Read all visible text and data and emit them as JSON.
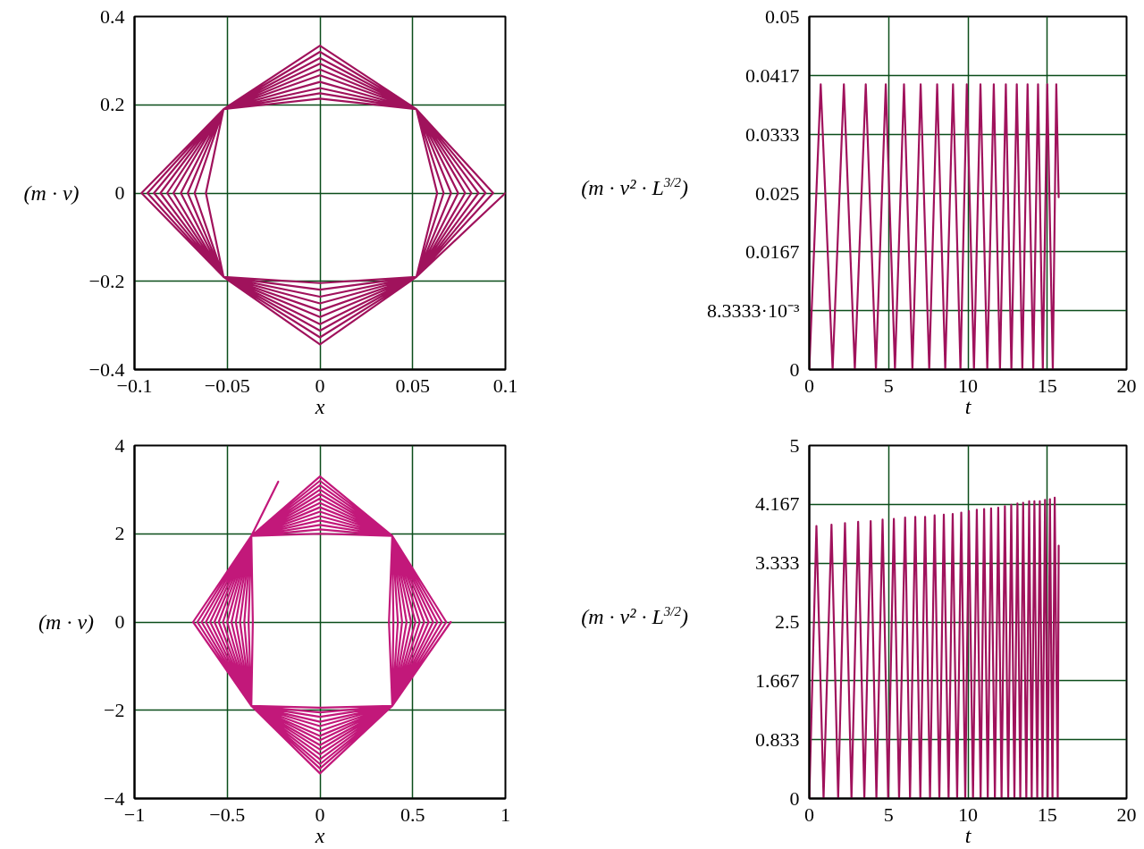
{
  "chart_data": [
    {
      "type": "line",
      "xlabel": "x",
      "ylabel": "(m · v)",
      "xlim": [
        -0.1,
        0.1
      ],
      "ylim": [
        -0.4,
        0.4
      ],
      "xticks": [
        -0.1,
        -0.05,
        0,
        0.05,
        0.1
      ],
      "yticks": [
        -0.4,
        -0.2,
        0,
        0.2,
        0.4
      ],
      "grid": true,
      "series": [
        {
          "color": "#a0125c",
          "x": [
            0.1,
            0.052,
            0,
            -0.052,
            -0.0962,
            -0.052,
            0,
            0.052,
            0.0934,
            0.052,
            0,
            -0.052,
            -0.093,
            -0.052,
            0,
            0.052,
            0.0893,
            0.052,
            0,
            -0.052,
            -0.0895,
            -0.052,
            0,
            0.052,
            0.0855,
            0.052,
            0,
            -0.052,
            -0.086,
            -0.052,
            0,
            0.052,
            0.0817,
            0.052,
            0,
            -0.052,
            -0.0824,
            -0.052,
            0,
            0.052,
            0.0783,
            0.052,
            0,
            -0.052,
            -0.079,
            -0.052,
            0,
            0.052,
            0.0745,
            0.052,
            0,
            -0.052,
            -0.075,
            -0.052,
            0,
            0.052,
            0.0707,
            0.052,
            0,
            -0.052,
            -0.0713,
            -0.052,
            0,
            0.052,
            0.0667,
            0.052,
            0,
            -0.052,
            -0.0676,
            -0.052,
            0,
            0.052,
            0.0632,
            0.052,
            0,
            -0.052,
            -0.0615,
            -0.052,
            0,
            0.052
          ],
          "values": [
            0,
            -0.19,
            -0.204,
            -0.19,
            0,
            0.19,
            0.214,
            0.19,
            0,
            -0.19,
            -0.219,
            -0.19,
            0,
            0.19,
            0.226,
            0.19,
            0,
            -0.19,
            -0.235,
            -0.19,
            0,
            0.19,
            0.238,
            0.19,
            0,
            -0.19,
            -0.25,
            -0.19,
            0,
            0.19,
            0.252,
            0.19,
            0,
            -0.19,
            -0.266,
            -0.19,
            0,
            0.19,
            0.267,
            0.19,
            0,
            -0.19,
            -0.281,
            -0.19,
            0,
            0.19,
            0.28,
            0.19,
            0,
            -0.19,
            -0.297,
            -0.19,
            0,
            0.19,
            0.293,
            0.19,
            0,
            -0.19,
            -0.312,
            -0.19,
            0,
            0.19,
            0.306,
            0.19,
            0,
            -0.19,
            -0.327,
            -0.19,
            0,
            0.19,
            0.32,
            0.19,
            0,
            -0.19,
            -0.343,
            -0.19,
            0,
            0.19,
            0.334,
            0.19
          ]
        }
      ]
    },
    {
      "type": "line",
      "xlabel": "t",
      "ylabel": "(m · v² · L$^{3/2}$)",
      "xlim": [
        0,
        20
      ],
      "ylim": [
        0,
        0.05
      ],
      "xticks": [
        0,
        5,
        10,
        15,
        20
      ],
      "yticks": [
        0,
        {
          "value": 0.0083333,
          "label": "8.3333·10⁻³"
        },
        {
          "value": 0.016667,
          "label": "0.0167"
        },
        0.025,
        {
          "value": 0.033333,
          "label": "0.0333"
        },
        {
          "value": 0.041667,
          "label": "0.0417"
        },
        0.05
      ],
      "grid": true,
      "series": [
        {
          "color": "#a0125c",
          "x": [
            0,
            0.72,
            1.47,
            2.18,
            2.87,
            3.56,
            4.2,
            4.82,
            5.4,
            5.97,
            6.5,
            7.02,
            7.56,
            8.06,
            8.57,
            9.06,
            9.53,
            9.93,
            10.38,
            10.79,
            11.22,
            11.63,
            12.02,
            12.39,
            12.74,
            13.08,
            13.43,
            13.76,
            14.12,
            14.42,
            14.72,
            15.0,
            15.35,
            15.57,
            15.72
          ],
          "values": [
            0,
            0.0404,
            0,
            0.0404,
            0,
            0.0404,
            0,
            0.0404,
            0,
            0.0404,
            0,
            0.0404,
            0,
            0.0404,
            0,
            0.0404,
            0,
            0.0404,
            0,
            0.0404,
            0,
            0.0404,
            0,
            0.0404,
            0,
            0.0404,
            0,
            0.0404,
            0,
            0.0404,
            0,
            0.0404,
            0,
            0.0404,
            0.0244
          ]
        }
      ]
    },
    {
      "type": "line",
      "xlabel": "x",
      "ylabel": "(m · v)",
      "xlim": [
        -1,
        1
      ],
      "ylim": [
        -4,
        4
      ],
      "xticks": [
        -1,
        -0.5,
        0,
        0.5,
        1
      ],
      "yticks": [
        -4,
        -2,
        0,
        2,
        4
      ],
      "grid": true,
      "series": [
        {
          "color": "#c2187a",
          "x": [
            0.705,
            0.39,
            0,
            -0.37,
            -0.684,
            -0.37,
            0,
            0.39,
            0.681,
            0.39,
            0,
            -0.37,
            -0.661,
            -0.37,
            0,
            0.39,
            0.657,
            0.39,
            0,
            -0.37,
            -0.638,
            -0.37,
            0,
            0.39,
            0.633,
            0.39,
            0,
            -0.37,
            -0.615,
            -0.37,
            0,
            0.39,
            0.61,
            0.39,
            0,
            -0.37,
            -0.592,
            -0.37,
            0,
            0.39,
            0.586,
            0.39,
            0,
            -0.37,
            -0.569,
            -0.37,
            0,
            0.39,
            0.562,
            0.39,
            0,
            -0.37,
            -0.546,
            -0.37,
            0,
            0.39,
            0.538,
            0.39,
            0,
            -0.37,
            -0.523,
            -0.37,
            0,
            0.39,
            0.515,
            0.39,
            0,
            -0.37,
            -0.5,
            -0.37,
            0,
            0.39,
            0.491,
            0.39,
            0,
            -0.37,
            -0.477,
            -0.37,
            0,
            0.39,
            0.467,
            0.39,
            0,
            -0.37,
            -0.454,
            -0.37,
            0,
            0.39,
            0.443,
            0.39,
            0,
            -0.37,
            -0.431,
            -0.37,
            0,
            0.39,
            0.42,
            0.39,
            0,
            -0.37,
            -0.408,
            -0.37,
            0,
            0.39,
            0.396,
            0.39,
            0,
            -0.37,
            -0.385,
            -0.37,
            0,
            0.39,
            0.372,
            0.39,
            0,
            -0.37,
            -0.362,
            -0.37,
            -0.225
          ],
          "values": [
            0,
            -1.9,
            -1.94,
            -1.9,
            0,
            1.95,
            2.0,
            1.95,
            0,
            -1.9,
            -2.05,
            -1.9,
            0,
            1.95,
            2.1,
            1.95,
            0,
            -1.9,
            -2.15,
            -1.9,
            0,
            1.95,
            2.2,
            1.95,
            0,
            -1.9,
            -2.26,
            -1.9,
            0,
            1.95,
            2.3,
            1.95,
            0,
            -1.9,
            -2.36,
            -1.9,
            0,
            1.95,
            2.4,
            1.95,
            0,
            -1.9,
            -2.47,
            -1.9,
            0,
            1.95,
            2.5,
            1.95,
            0,
            -1.9,
            -2.58,
            -1.9,
            0,
            1.95,
            2.6,
            1.95,
            0,
            -1.9,
            -2.68,
            -1.9,
            0,
            1.95,
            2.7,
            1.95,
            0,
            -1.9,
            -2.79,
            -1.9,
            0,
            1.95,
            2.8,
            1.95,
            0,
            -1.9,
            -2.89,
            -1.9,
            0,
            1.95,
            2.9,
            1.95,
            0,
            -1.9,
            -3.0,
            -1.9,
            0,
            1.95,
            3.0,
            1.95,
            0,
            -1.9,
            -3.11,
            -1.9,
            0,
            1.95,
            3.1,
            1.95,
            0,
            -1.9,
            -3.22,
            -1.9,
            0,
            1.95,
            3.2,
            1.95,
            0,
            -1.9,
            -3.32,
            -1.9,
            0,
            1.95,
            3.3,
            1.95,
            0,
            -1.9,
            -3.43,
            -1.9,
            0,
            1.95,
            3.18
          ]
        }
      ]
    },
    {
      "type": "line",
      "xlabel": "t",
      "ylabel": "(m · v² · L$^{3/2}$)",
      "xlim": [
        0,
        20
      ],
      "ylim": [
        0,
        5
      ],
      "xticks": [
        0,
        5,
        10,
        15,
        20
      ],
      "yticks": [
        0,
        {
          "value": 0.83333,
          "label": "0.833"
        },
        {
          "value": 1.66667,
          "label": "1.667"
        },
        2.5,
        {
          "value": 3.33333,
          "label": "3.333"
        },
        {
          "value": 4.16667,
          "label": "4.167"
        },
        5
      ],
      "grid": true,
      "series": [
        {
          "color": "#a0125c",
          "x": [
            0,
            0.45,
            0.9,
            1.4,
            1.82,
            2.25,
            2.66,
            3.08,
            3.47,
            3.87,
            4.23,
            4.62,
            4.97,
            5.33,
            5.66,
            6.04,
            6.35,
            6.68,
            7.0,
            7.3,
            7.61,
            7.9,
            8.2,
            8.48,
            8.78,
            9.04,
            9.32,
            9.58,
            9.83,
            10.06,
            10.32,
            10.56,
            10.8,
            11.02,
            11.25,
            11.46,
            11.7,
            11.91,
            12.12,
            12.33,
            12.54,
            12.73,
            12.93,
            13.12,
            13.3,
            13.48,
            13.68,
            13.86,
            14.02,
            14.19,
            14.37,
            14.53,
            14.7,
            14.86,
            15.03,
            15.17,
            15.33,
            15.47,
            15.66,
            15.72
          ],
          "values": [
            0,
            3.86,
            0,
            3.88,
            0,
            3.9,
            0,
            3.92,
            0,
            3.93,
            0,
            3.95,
            0,
            3.96,
            0,
            3.98,
            0,
            3.99,
            0,
            3.99,
            0,
            4.01,
            0,
            4.02,
            0,
            4.03,
            0,
            4.05,
            0,
            4.07,
            0,
            4.09,
            0,
            4.1,
            0,
            4.11,
            0,
            4.12,
            0,
            4.14,
            0,
            4.16,
            0,
            4.18,
            0,
            4.19,
            0,
            4.21,
            0,
            4.21,
            0,
            4.21,
            0,
            4.23,
            0,
            4.24,
            0,
            4.26,
            0,
            3.58
          ]
        }
      ]
    }
  ]
}
